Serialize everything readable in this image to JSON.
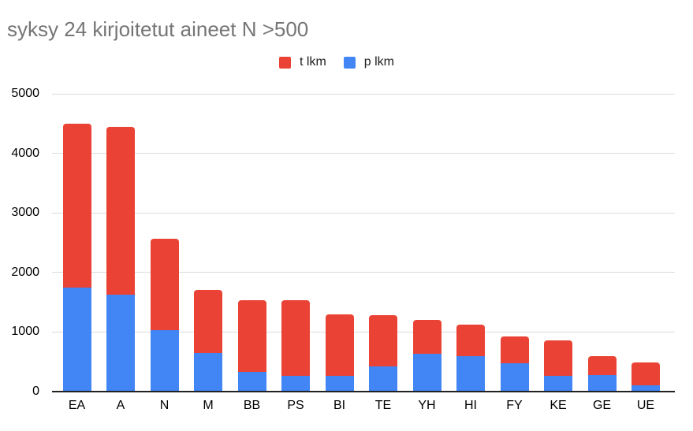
{
  "chart_data": {
    "type": "bar",
    "stacked": true,
    "title": "syksy 24 kirjoitetut aineet N >500",
    "categories": [
      "EA",
      "A",
      "N",
      "M",
      "BB",
      "PS",
      "BI",
      "TE",
      "YH",
      "HI",
      "FY",
      "KE",
      "GE",
      "UE"
    ],
    "series": [
      {
        "name": "t lkm",
        "color": "#EA4335",
        "values": [
          2750,
          2820,
          1530,
          1060,
          1210,
          1270,
          1030,
          860,
          560,
          520,
          450,
          600,
          310,
          380
        ]
      },
      {
        "name": "p lkm",
        "color": "#4285F4",
        "values": [
          1750,
          1630,
          1030,
          650,
          330,
          260,
          270,
          420,
          640,
          600,
          480,
          260,
          280,
          110
        ]
      }
    ],
    "stack_totals": [
      4500,
      4450,
      2560,
      1710,
      1540,
      1530,
      1300,
      1280,
      1200,
      1120,
      930,
      860,
      590,
      490
    ],
    "stack_order_bottom_to_top": [
      "p lkm",
      "t lkm"
    ],
    "xlabel": "",
    "ylabel": "",
    "ylim": [
      0,
      5000
    ],
    "yticks": [
      0,
      1000,
      2000,
      3000,
      4000,
      5000
    ],
    "grid": true,
    "legend_position": "top",
    "title_color": "#757575",
    "axis_color": "#212121",
    "gridline_color": "#dcdcdc"
  }
}
